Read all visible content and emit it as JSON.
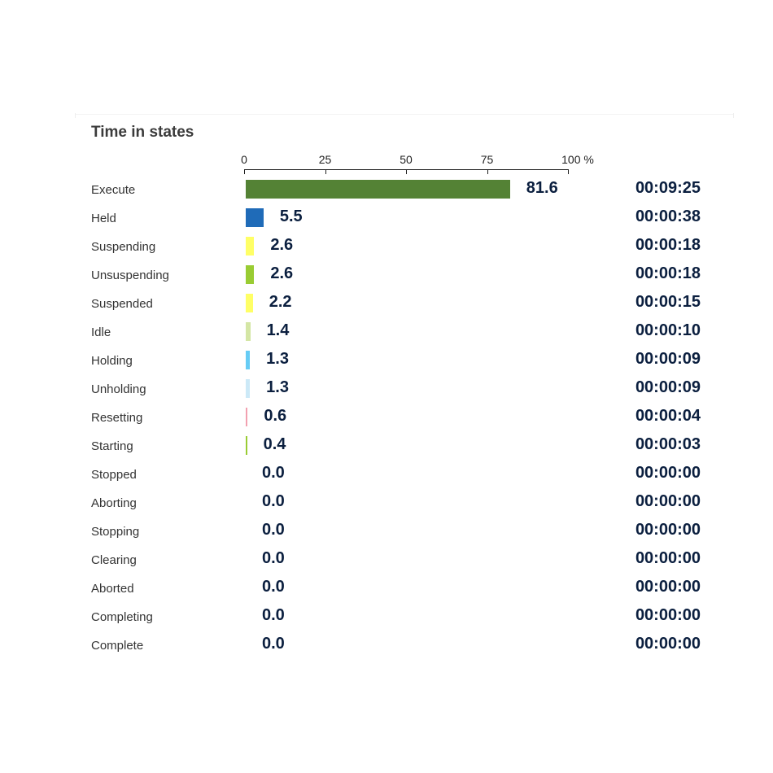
{
  "title": "Time in states",
  "axis": {
    "ticks": [
      {
        "label": "0",
        "value": 0
      },
      {
        "label": "25",
        "value": 25
      },
      {
        "label": "50",
        "value": 50
      },
      {
        "label": "75",
        "value": 75
      },
      {
        "label": "100 %",
        "value": 100
      }
    ]
  },
  "rows": [
    {
      "label": "Execute",
      "value": 81.6,
      "value_text": "81.6",
      "duration": "00:09:25",
      "color": "#548235"
    },
    {
      "label": "Held",
      "value": 5.5,
      "value_text": "5.5",
      "duration": "00:00:38",
      "color": "#1f6bb8"
    },
    {
      "label": "Suspending",
      "value": 2.6,
      "value_text": "2.6",
      "duration": "00:00:18",
      "color": "#ffff66"
    },
    {
      "label": "Unsuspending",
      "value": 2.6,
      "value_text": "2.6",
      "duration": "00:00:18",
      "color": "#99cc33"
    },
    {
      "label": "Suspended",
      "value": 2.2,
      "value_text": "2.2",
      "duration": "00:00:15",
      "color": "#ffff66"
    },
    {
      "label": "Idle",
      "value": 1.4,
      "value_text": "1.4",
      "duration": "00:00:10",
      "color": "#d4e6a5"
    },
    {
      "label": "Holding",
      "value": 1.3,
      "value_text": "1.3",
      "duration": "00:00:09",
      "color": "#66ccf5"
    },
    {
      "label": "Unholding",
      "value": 1.3,
      "value_text": "1.3",
      "duration": "00:00:09",
      "color": "#cce9f7"
    },
    {
      "label": "Resetting",
      "value": 0.6,
      "value_text": "0.6",
      "duration": "00:00:04",
      "color": "#f2a0b0"
    },
    {
      "label": "Starting",
      "value": 0.4,
      "value_text": "0.4",
      "duration": "00:00:03",
      "color": "#99cc33"
    },
    {
      "label": "Stopped",
      "value": 0.0,
      "value_text": "0.0",
      "duration": "00:00:00",
      "color": "#cccccc"
    },
    {
      "label": "Aborting",
      "value": 0.0,
      "value_text": "0.0",
      "duration": "00:00:00",
      "color": "#cccccc"
    },
    {
      "label": "Stopping",
      "value": 0.0,
      "value_text": "0.0",
      "duration": "00:00:00",
      "color": "#cccccc"
    },
    {
      "label": "Clearing",
      "value": 0.0,
      "value_text": "0.0",
      "duration": "00:00:00",
      "color": "#cccccc"
    },
    {
      "label": "Aborted",
      "value": 0.0,
      "value_text": "0.0",
      "duration": "00:00:00",
      "color": "#cccccc"
    },
    {
      "label": "Completing",
      "value": 0.0,
      "value_text": "0.0",
      "duration": "00:00:00",
      "color": "#cccccc"
    },
    {
      "label": "Complete",
      "value": 0.0,
      "value_text": "0.0",
      "duration": "00:00:00",
      "color": "#cccccc"
    }
  ],
  "chart_data": {
    "type": "bar",
    "orientation": "horizontal",
    "title": "Time in states",
    "xlabel": "%",
    "ylabel": "",
    "xlim": [
      0,
      100
    ],
    "x_ticks": [
      "0",
      "25",
      "50",
      "75",
      "100 %"
    ],
    "categories": [
      "Execute",
      "Held",
      "Suspending",
      "Unsuspending",
      "Suspended",
      "Idle",
      "Holding",
      "Unholding",
      "Resetting",
      "Starting",
      "Stopped",
      "Aborting",
      "Stopping",
      "Clearing",
      "Aborted",
      "Completing",
      "Complete"
    ],
    "values": [
      81.6,
      5.5,
      2.6,
      2.6,
      2.2,
      1.4,
      1.3,
      1.3,
      0.6,
      0.4,
      0.0,
      0.0,
      0.0,
      0.0,
      0.0,
      0.0,
      0.0
    ],
    "durations": [
      "00:09:25",
      "00:00:38",
      "00:00:18",
      "00:00:18",
      "00:00:15",
      "00:00:10",
      "00:00:09",
      "00:00:09",
      "00:00:04",
      "00:00:03",
      "00:00:00",
      "00:00:00",
      "00:00:00",
      "00:00:00",
      "00:00:00",
      "00:00:00",
      "00:00:00"
    ],
    "grid": false,
    "legend": "none"
  }
}
